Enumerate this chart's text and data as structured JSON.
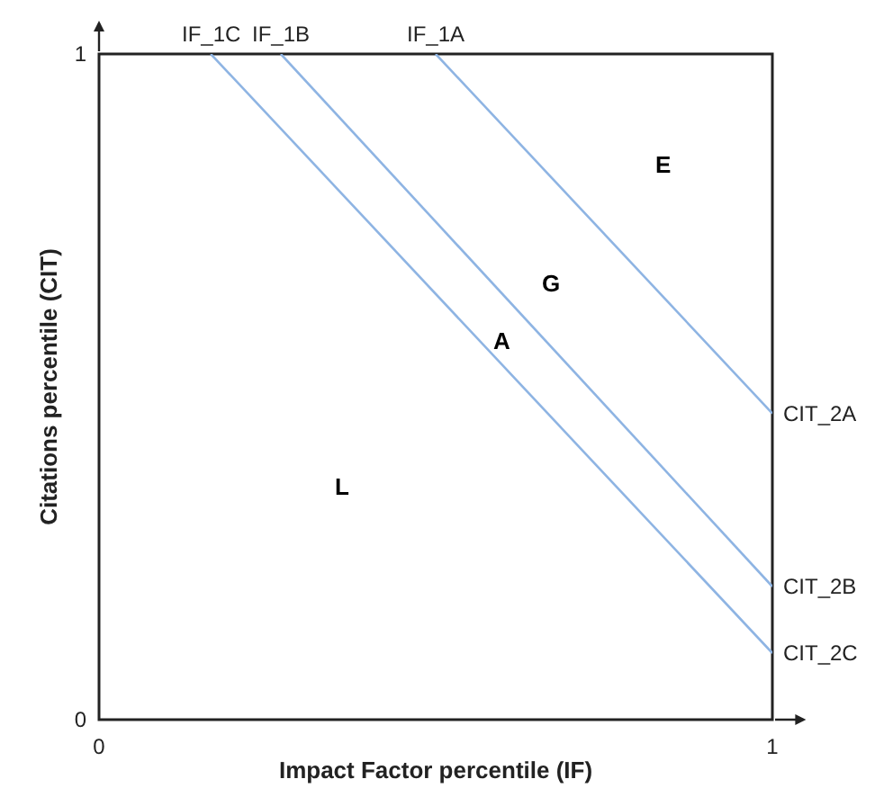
{
  "chart_data": {
    "type": "line",
    "xlabel": "Impact Factor percentile (IF)",
    "ylabel": "Citations percentile (CIT)",
    "xlim": [
      0,
      1
    ],
    "ylim": [
      0,
      1
    ],
    "xticks": [
      0,
      1
    ],
    "yticks": [
      0,
      1
    ],
    "marker": "none",
    "line_style": "solid",
    "series": [
      {
        "color": "#8eb4e3",
        "x": [
          0.5,
          1
        ],
        "values": [
          1,
          0.46
        ]
      },
      {
        "color": "#8eb4e3",
        "x": [
          0.27,
          1
        ],
        "values": [
          1,
          0.2
        ]
      },
      {
        "color": "#8eb4e3",
        "x": [
          0.166,
          1
        ],
        "values": [
          1,
          0.1
        ]
      }
    ],
    "annotations": [
      {
        "text": "IF_1C",
        "x": 0.166,
        "y": 1
      },
      {
        "text": "IF_1B",
        "x": 0.27,
        "y": 1
      },
      {
        "text": "IF_1A",
        "x": 0.5,
        "y": 1
      },
      {
        "text": "CIT_2A",
        "x": 1,
        "y": 0.46
      },
      {
        "text": "CIT_2B",
        "x": 1,
        "y": 0.2
      },
      {
        "text": "CIT_2C",
        "x": 1,
        "y": 0.1
      },
      "E",
      "G",
      "A",
      "L"
    ]
  }
}
